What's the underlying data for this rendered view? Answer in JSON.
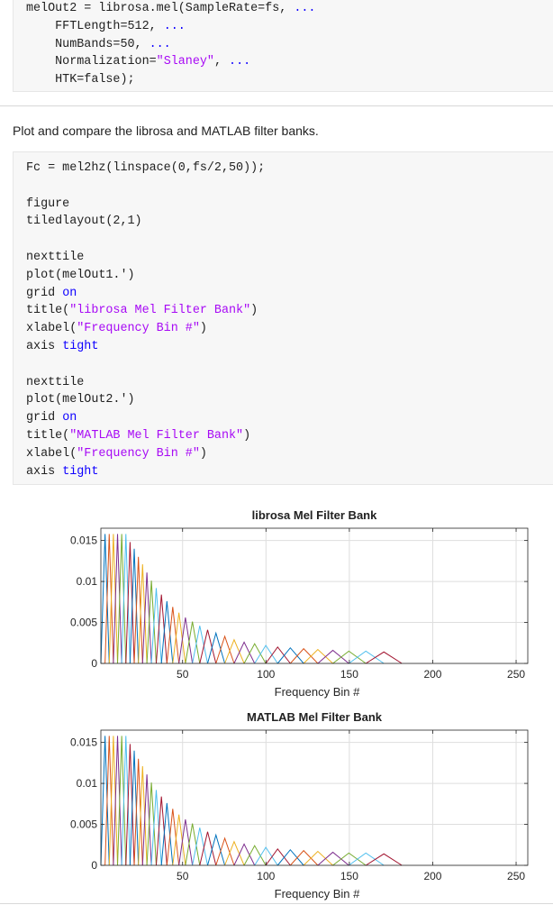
{
  "code_top": {
    "lines": [
      [
        {
          "t": "melOut2 = librosa.mel(SampleRate=fs, ",
          "c": "n"
        },
        {
          "t": "...",
          "c": "kw"
        }
      ],
      [
        {
          "t": "    FFTLength=512, ",
          "c": "n"
        },
        {
          "t": "...",
          "c": "kw"
        }
      ],
      [
        {
          "t": "    NumBands=50, ",
          "c": "n"
        },
        {
          "t": "...",
          "c": "kw"
        }
      ],
      [
        {
          "t": "    Normalization=",
          "c": "n"
        },
        {
          "t": "\"Slaney\"",
          "c": "str"
        },
        {
          "t": ", ",
          "c": "n"
        },
        {
          "t": "...",
          "c": "kw"
        }
      ],
      [
        {
          "t": "    HTK=false);",
          "c": "n"
        }
      ]
    ]
  },
  "prose_text": "Plot and compare the librosa and MATLAB filter banks.",
  "code_main": {
    "lines": [
      [
        {
          "t": "Fc = mel2hz(linspace(0,fs/2,50));",
          "c": "n"
        }
      ],
      [],
      [
        {
          "t": "figure",
          "c": "n"
        }
      ],
      [
        {
          "t": "tiledlayout(2,1)",
          "c": "n"
        }
      ],
      [],
      [
        {
          "t": "nexttile",
          "c": "n"
        }
      ],
      [
        {
          "t": "plot(melOut1.')",
          "c": "n"
        }
      ],
      [
        {
          "t": "grid ",
          "c": "n"
        },
        {
          "t": "on",
          "c": "kw"
        }
      ],
      [
        {
          "t": "title(",
          "c": "n"
        },
        {
          "t": "\"librosa Mel Filter Bank\"",
          "c": "str"
        },
        {
          "t": ")",
          "c": "n"
        }
      ],
      [
        {
          "t": "xlabel(",
          "c": "n"
        },
        {
          "t": "\"Frequency Bin #\"",
          "c": "str"
        },
        {
          "t": ")",
          "c": "n"
        }
      ],
      [
        {
          "t": "axis ",
          "c": "n"
        },
        {
          "t": "tight",
          "c": "kw"
        }
      ],
      [],
      [
        {
          "t": "nexttile",
          "c": "n"
        }
      ],
      [
        {
          "t": "plot(melOut2.')",
          "c": "n"
        }
      ],
      [
        {
          "t": "grid ",
          "c": "n"
        },
        {
          "t": "on",
          "c": "kw"
        }
      ],
      [
        {
          "t": "title(",
          "c": "n"
        },
        {
          "t": "\"MATLAB Mel Filter Bank\"",
          "c": "str"
        },
        {
          "t": ")",
          "c": "n"
        }
      ],
      [
        {
          "t": "xlabel(",
          "c": "n"
        },
        {
          "t": "\"Frequency Bin #\"",
          "c": "str"
        },
        {
          "t": ")",
          "c": "n"
        }
      ],
      [
        {
          "t": "axis ",
          "c": "n"
        },
        {
          "t": "tight",
          "c": "kw"
        }
      ]
    ]
  },
  "colors": {
    "keyword": "#0e00ff",
    "string": "#a709f5",
    "series": [
      "#0072BD",
      "#D95319",
      "#EDB120",
      "#7E2F8E",
      "#77AC30",
      "#4DBEEE",
      "#A2142F"
    ]
  },
  "chart_data": [
    {
      "type": "line",
      "title": "librosa Mel Filter Bank",
      "xlabel": "Frequency Bin #",
      "ylabel": "",
      "xlim": [
        1,
        257
      ],
      "ylim": [
        0,
        0.0165
      ],
      "grid": true,
      "xticks": [
        50,
        100,
        150,
        200,
        250
      ],
      "yticks": [
        0,
        0.005,
        0.01,
        0.015
      ],
      "ytick_labels": [
        "0",
        "0.005",
        "0.01",
        "0.015"
      ],
      "series_count": 50,
      "peak_bins": [
        3.5,
        6,
        8.5,
        11,
        13.5,
        16,
        18.5,
        21,
        23.5,
        26,
        28.6,
        31.3,
        34.2,
        37.3,
        40.6,
        44.1,
        47.8,
        51.7,
        55.9,
        60.3,
        65,
        70,
        75.3,
        80.9,
        86.9,
        93.2,
        99.9,
        107,
        114.6,
        122.6,
        131.1,
        140.1,
        149.7,
        159.9,
        170.7
      ],
      "peak_values": [
        0.0158,
        0.0158,
        0.0158,
        0.0158,
        0.0158,
        0.0158,
        0.0148,
        0.014,
        0.013,
        0.0121,
        0.0111,
        0.0101,
        0.0092,
        0.0084,
        0.0076,
        0.0069,
        0.0062,
        0.0056,
        0.0051,
        0.0046,
        0.0041,
        0.0037,
        0.0033,
        0.0029,
        0.0026,
        0.0024,
        0.0022,
        0.002,
        0.0019,
        0.0018,
        0.0017,
        0.0016,
        0.0015,
        0.0015,
        0.0014
      ]
    },
    {
      "type": "line",
      "title": "MATLAB Mel Filter Bank",
      "xlabel": "Frequency Bin #",
      "ylabel": "",
      "xlim": [
        1,
        257
      ],
      "ylim": [
        0,
        0.0165
      ],
      "grid": true,
      "xticks": [
        50,
        100,
        150,
        200,
        250
      ],
      "yticks": [
        0,
        0.005,
        0.01,
        0.015
      ],
      "ytick_labels": [
        "0",
        "0.005",
        "0.01",
        "0.015"
      ],
      "series_count": 50,
      "peak_bins": [
        3.5,
        6,
        8.5,
        11,
        13.5,
        16,
        18.5,
        21,
        23.5,
        26,
        28.6,
        31.3,
        34.2,
        37.3,
        40.6,
        44.1,
        47.8,
        51.7,
        55.9,
        60.3,
        65,
        70,
        75.3,
        80.9,
        86.9,
        93.2,
        99.9,
        107,
        114.6,
        122.6,
        131.1,
        140.1,
        149.7,
        159.9,
        170.7
      ],
      "peak_values": [
        0.0158,
        0.0158,
        0.0158,
        0.0158,
        0.0158,
        0.0158,
        0.0148,
        0.014,
        0.013,
        0.0121,
        0.0111,
        0.0101,
        0.0092,
        0.0084,
        0.0076,
        0.0069,
        0.0062,
        0.0056,
        0.0051,
        0.0046,
        0.0041,
        0.0037,
        0.0033,
        0.0029,
        0.0026,
        0.0024,
        0.0022,
        0.002,
        0.0019,
        0.0018,
        0.0017,
        0.0016,
        0.0015,
        0.0015,
        0.0014
      ]
    }
  ]
}
